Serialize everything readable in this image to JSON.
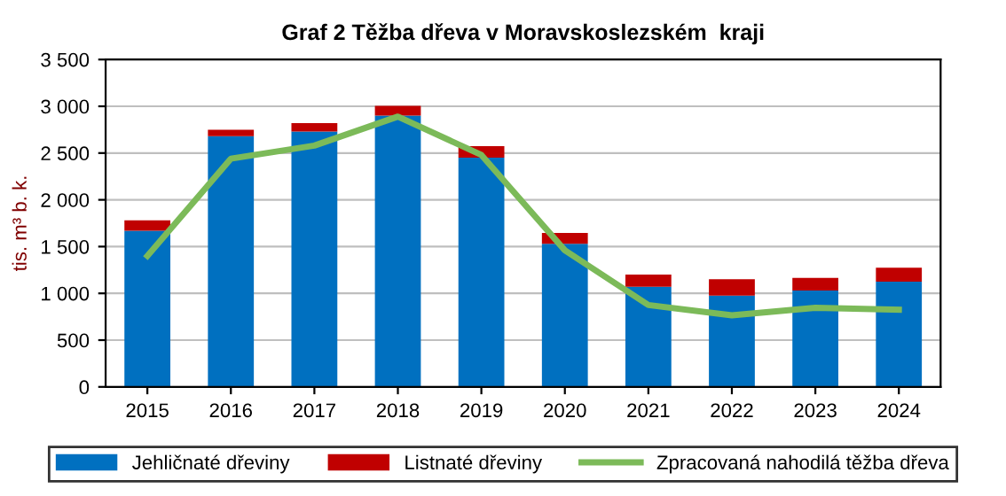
{
  "chart_data": {
    "type": "bar",
    "stacked": true,
    "title": "Graf 2 Těžba dřeva v Moravskoslezském  kraji",
    "ylabel": "tis. m³ b. k.",
    "categories": [
      "2015",
      "2016",
      "2017",
      "2018",
      "2019",
      "2020",
      "2021",
      "2022",
      "2023",
      "2024"
    ],
    "series": [
      {
        "name": "Jehličnaté dřeviny",
        "color": "#0070c0",
        "values": [
          1670,
          2680,
          2730,
          2900,
          2450,
          1530,
          1070,
          975,
          1030,
          1125
        ]
      },
      {
        "name": "Listnaté dřeviny",
        "color": "#c00000",
        "values": [
          110,
          70,
          90,
          105,
          125,
          115,
          130,
          175,
          135,
          150
        ]
      },
      {
        "name": "Zpracovaná nahodilá těžba dřeva",
        "type": "line",
        "color": "#7cba59",
        "values": [
          1400,
          2440,
          2580,
          2890,
          2480,
          1460,
          875,
          765,
          845,
          825
        ]
      }
    ],
    "ylim": [
      0,
      3500
    ],
    "yticks": [
      {
        "value": 0,
        "label": "0"
      },
      {
        "value": 500,
        "label": "500"
      },
      {
        "value": 1000,
        "label": "1 000"
      },
      {
        "value": 1500,
        "label": "1 500"
      },
      {
        "value": 2000,
        "label": "2 000"
      },
      {
        "value": 2500,
        "label": "2 500"
      },
      {
        "value": 3000,
        "label": "3 000"
      },
      {
        "value": 3500,
        "label": "3 500"
      }
    ],
    "grid": "y",
    "legend": "bottom",
    "marker": "none",
    "line_style": "solid"
  }
}
